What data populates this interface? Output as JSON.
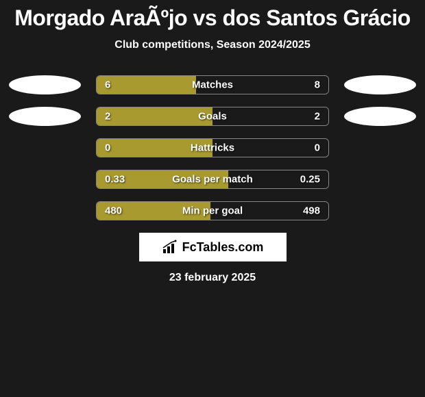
{
  "title": "Morgado AraÃºjo vs dos Santos Grácio",
  "subtitle": "Club competitions, Season 2024/2025",
  "date": "23 february 2025",
  "badge_text": "FcTables.com",
  "colors": {
    "background": "#1a1a1a",
    "bar_left": "#a89a2e",
    "bar_right": "#1a1a1a",
    "bar_border": "#888888",
    "side_ellipse": "#ffffff",
    "text": "#ffffff",
    "badge_bg": "#ffffff",
    "badge_text": "#000000"
  },
  "stats": [
    {
      "label": "Matches",
      "left_value": "6",
      "right_value": "8",
      "left_pct": 42.86,
      "show_ellipses": true
    },
    {
      "label": "Goals",
      "left_value": "2",
      "right_value": "2",
      "left_pct": 50,
      "show_ellipses": true
    },
    {
      "label": "Hattricks",
      "left_value": "0",
      "right_value": "0",
      "left_pct": 50,
      "show_ellipses": false
    },
    {
      "label": "Goals per match",
      "left_value": "0.33",
      "right_value": "0.25",
      "left_pct": 56.9,
      "show_ellipses": false
    },
    {
      "label": "Min per goal",
      "left_value": "480",
      "right_value": "498",
      "left_pct": 49.08,
      "show_ellipses": false
    }
  ]
}
